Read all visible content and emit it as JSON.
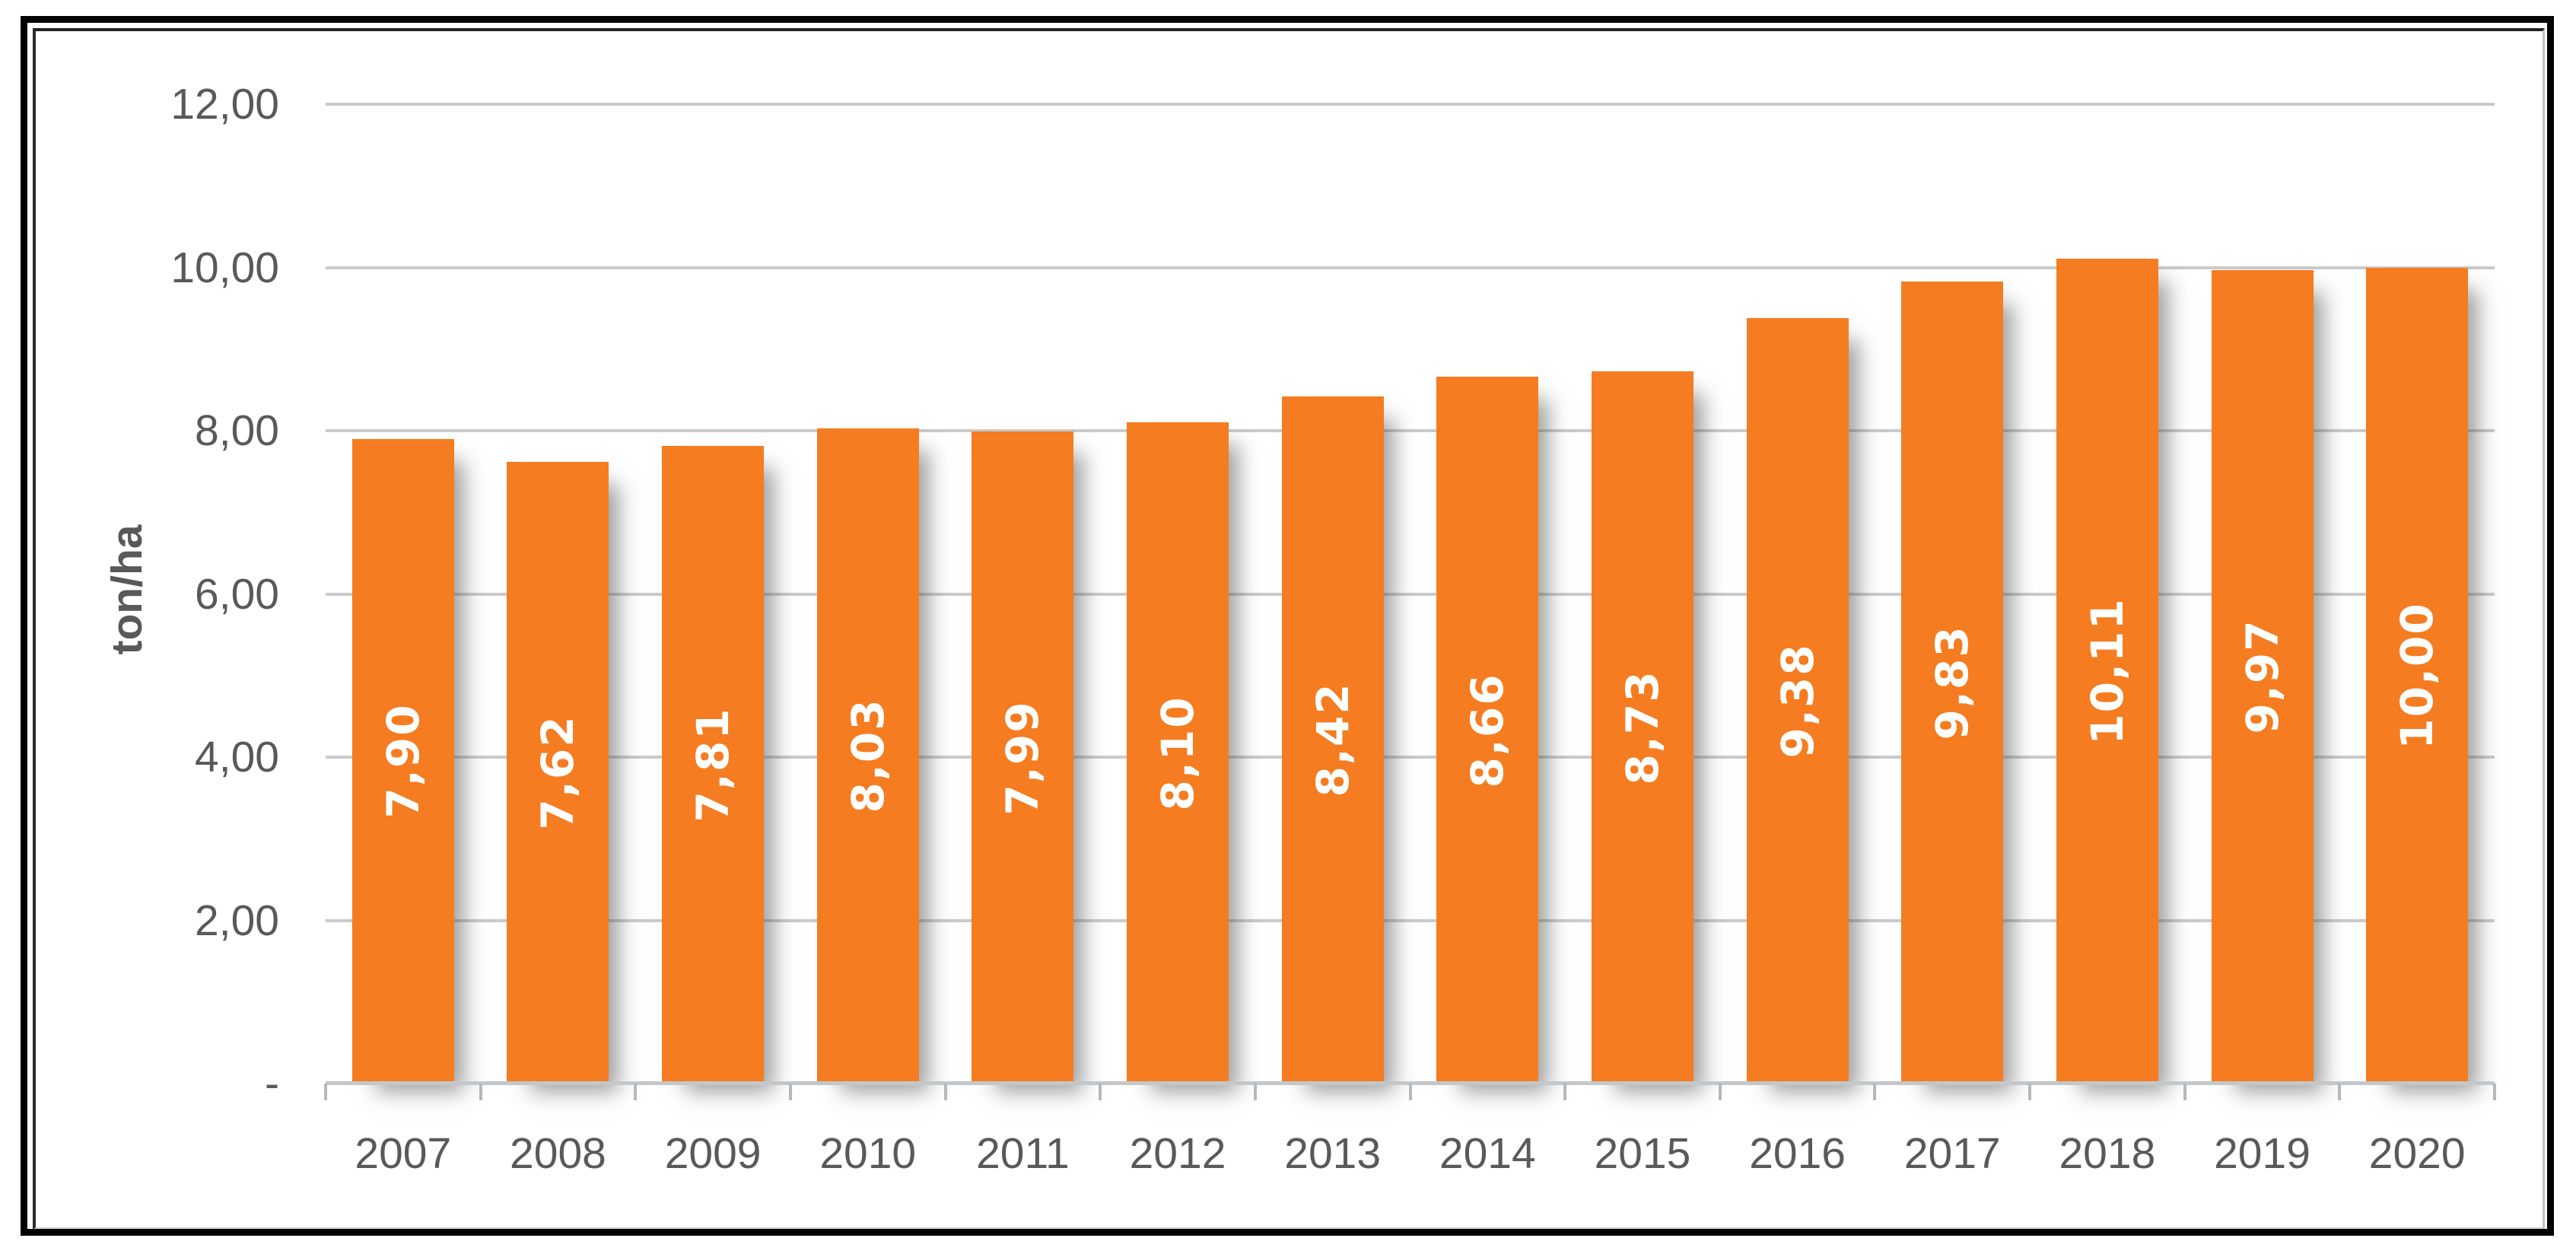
{
  "chart_data": {
    "type": "bar",
    "title": "",
    "ylabel": "ton/ha",
    "xlabel": "",
    "categories": [
      "2007",
      "2008",
      "2009",
      "2010",
      "2011",
      "2012",
      "2013",
      "2014",
      "2015",
      "2016",
      "2017",
      "2018",
      "2019",
      "2020"
    ],
    "values": [
      7.9,
      7.62,
      7.81,
      8.03,
      7.99,
      8.1,
      8.42,
      8.66,
      8.73,
      9.38,
      9.83,
      10.11,
      9.97,
      10.0
    ],
    "bar_labels": [
      "7,90",
      "7,62",
      "7,81",
      "8,03",
      "7,99",
      "8,10",
      "8,42",
      "8,66",
      "8,73",
      "9,38",
      "9,83",
      "10,11",
      "9,97",
      "10,00"
    ],
    "y_ticks": [
      {
        "value": 12,
        "label": "12,00"
      },
      {
        "value": 10,
        "label": "10,00"
      },
      {
        "value": 8,
        "label": "8,00"
      },
      {
        "value": 6,
        "label": "6,00"
      },
      {
        "value": 4,
        "label": "4,00"
      },
      {
        "value": 2,
        "label": "2,00"
      },
      {
        "value": 0,
        "label": "-"
      }
    ],
    "ylim": [
      0,
      12
    ],
    "grid": true,
    "legend": "none",
    "colors": {
      "bar": "#F57C20",
      "bar_label": "#FFFFFF",
      "axis_text": "#595959",
      "gridline": "#CACACA",
      "axis_line": "#C3C7CA",
      "tick": "#B5B9BB",
      "frame": "#000000",
      "background": "#FFFFFF"
    }
  }
}
